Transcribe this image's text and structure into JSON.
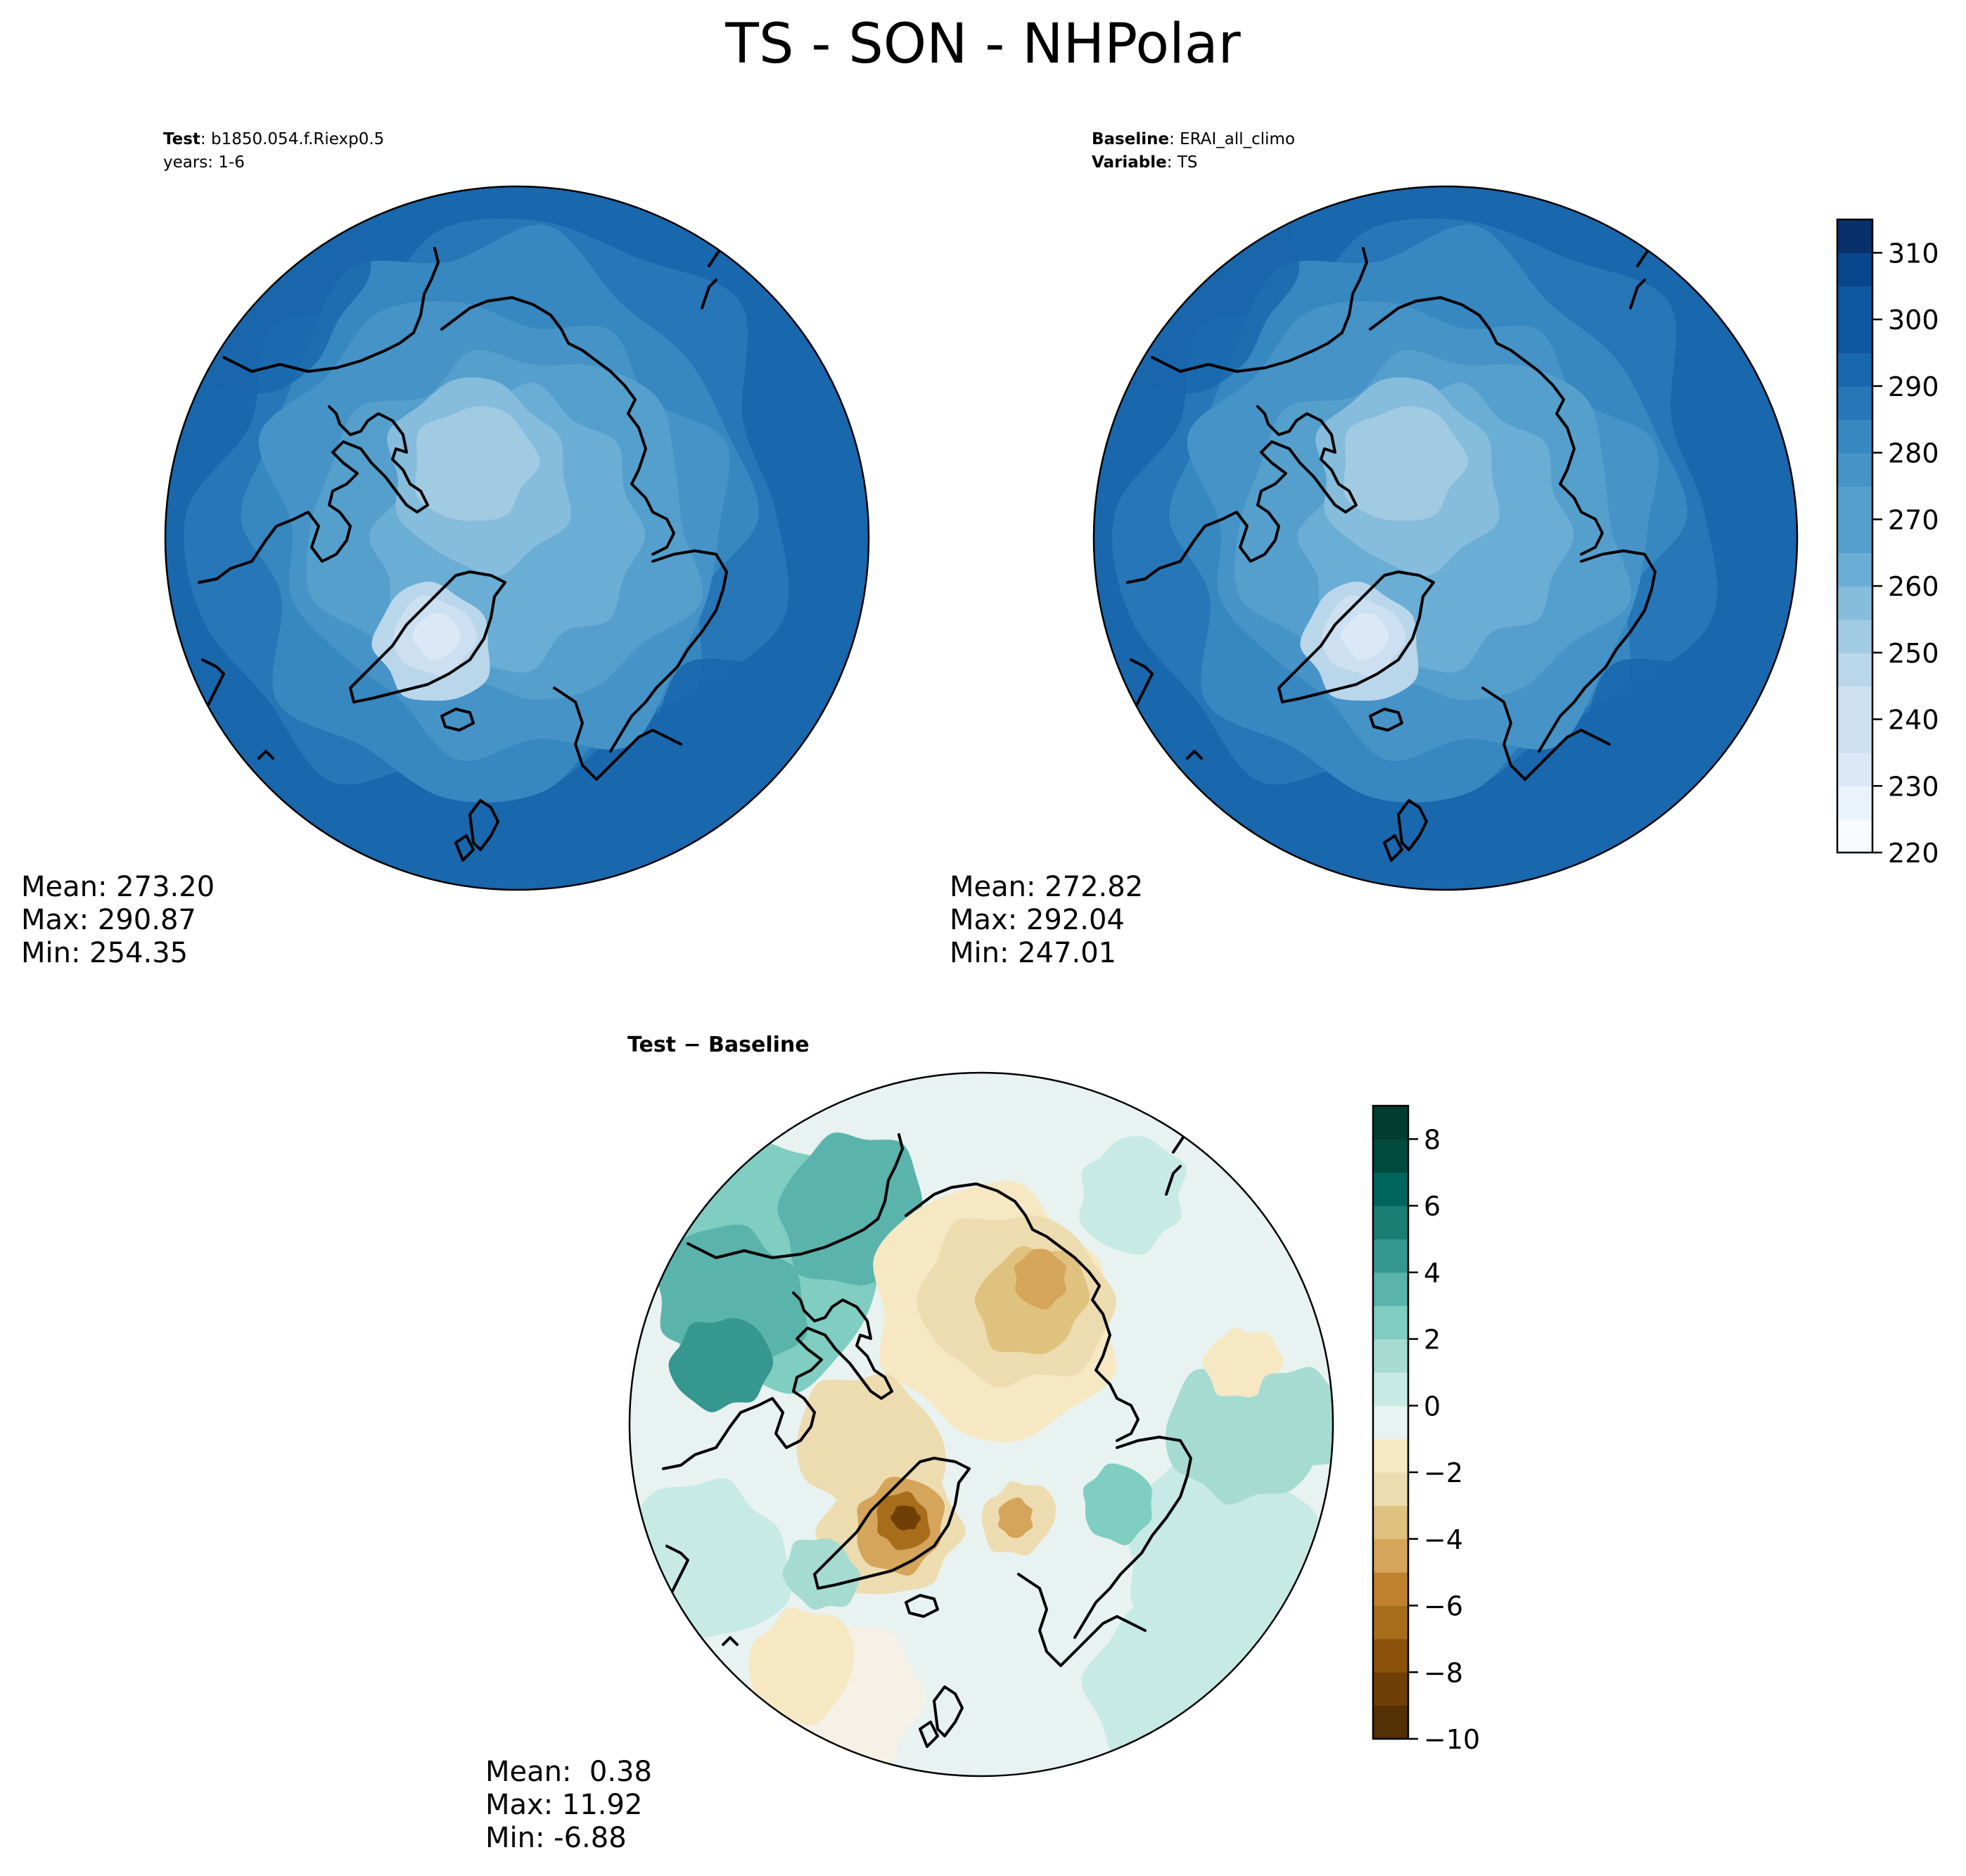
{
  "figure": {
    "title": "TS - SON - NHPolar"
  },
  "panels": {
    "test": {
      "label_bold": "Test",
      "label_sep": ":",
      "case_name": "b1850.054.f.Riexp0.5",
      "years": "years: 1-6",
      "stats": {
        "mean": "Mean: 273.20",
        "max": "Max: 290.87",
        "min": "Min: 254.35"
      }
    },
    "baseline": {
      "label_bold": "Baseline",
      "label_sep": ":",
      "case_name": "ERAI_all_climo",
      "variable_bold": "Variable",
      "variable": "TS",
      "stats": {
        "mean": "Mean: 272.82",
        "max": "Max: 292.04",
        "min": "Min: 247.01"
      }
    },
    "difference": {
      "title": "Test − Baseline",
      "stats": {
        "mean": "Mean:  0.38",
        "max": "Max: 11.92",
        "min": "Min: -6.88"
      }
    }
  },
  "chart_data": [
    {
      "type": "heatmap",
      "projection": "north polar stereographic",
      "field": "TS",
      "panel": "test",
      "colormap": "Blues",
      "levels": [
        220,
        225,
        230,
        235,
        240,
        245,
        250,
        255,
        260,
        265,
        270,
        275,
        280,
        285,
        290,
        295,
        300,
        305,
        310,
        315
      ],
      "colorbar_ticks": [
        "220",
        "230",
        "240",
        "250",
        "260",
        "270",
        "280",
        "290",
        "300",
        "310"
      ],
      "mean": 273.2,
      "max": 290.87,
      "min": 254.35
    },
    {
      "type": "heatmap",
      "projection": "north polar stereographic",
      "field": "TS",
      "panel": "baseline",
      "colormap": "Blues",
      "levels": [
        220,
        225,
        230,
        235,
        240,
        245,
        250,
        255,
        260,
        265,
        270,
        275,
        280,
        285,
        290,
        295,
        300,
        305,
        310,
        315
      ],
      "colorbar_ticks": [
        "220",
        "230",
        "240",
        "250",
        "260",
        "270",
        "280",
        "290",
        "300",
        "310"
      ],
      "mean": 272.82,
      "max": 292.04,
      "min": 247.01
    },
    {
      "type": "heatmap",
      "projection": "north polar stereographic",
      "field": "TS difference",
      "panel": "difference",
      "colormap": "BrBG",
      "levels": [
        -10,
        -9,
        -8,
        -7,
        -6,
        -5,
        -4,
        -3,
        -2,
        -1,
        0,
        1,
        2,
        3,
        4,
        5,
        6,
        7,
        8,
        9
      ],
      "colorbar_ticks": [
        "−10",
        "−8",
        "−6",
        "−4",
        "−2",
        "0",
        "2",
        "4",
        "6",
        "8"
      ],
      "mean": 0.38,
      "max": 11.92,
      "min": -6.88
    }
  ],
  "colors": {
    "blues": [
      "#f7fbff",
      "#eaf3fb",
      "#dbe9f6",
      "#cde0f1",
      "#bad6eb",
      "#a1cbe2",
      "#86bcdc",
      "#6aadd5",
      "#559fcd",
      "#4693c7",
      "#3787c0",
      "#2777b8",
      "#1967ad",
      "#0e58a2",
      "#08468b",
      "#08306b"
    ],
    "brbg": [
      "#543005",
      "#6f3f07",
      "#8c510a",
      "#a86d1b",
      "#bf812d",
      "#d4a55a",
      "#dfc27d",
      "#eddcb0",
      "#f6e8c3",
      "#f5f1e6",
      "#e8f2f0",
      "#c7eae5",
      "#a6dbd2",
      "#80cdc1",
      "#5ab4ac",
      "#35978f",
      "#1b7d74",
      "#01665e",
      "#014a3e",
      "#003c30"
    ]
  }
}
